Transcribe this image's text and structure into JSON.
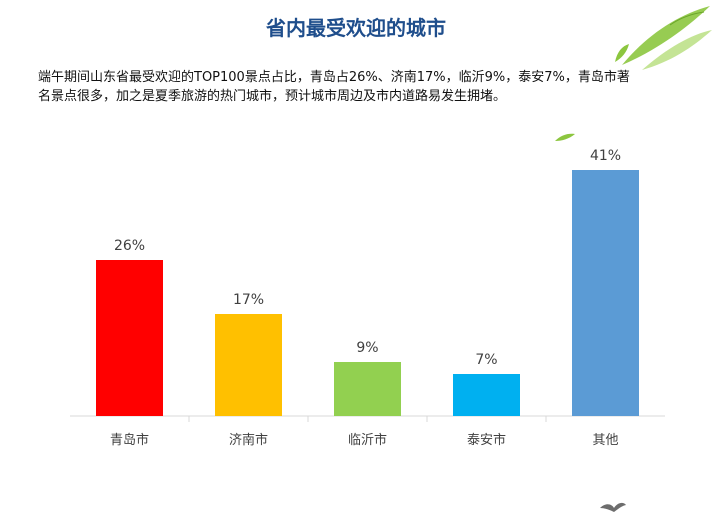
{
  "title": "省内最受欢迎的城市",
  "description": "端午期间山东省最受欢迎的TOP100景点占比，青岛占26%、济南17%，临沂9%，泰安7%，青岛市著名景点很多，加之是夏季旅游的热门城市，预计城市周边及市内道路易发生拥堵。",
  "chart_data": {
    "type": "bar",
    "categories": [
      "青岛市",
      "济南市",
      "临沂市",
      "泰安市",
      "其他"
    ],
    "values": [
      26,
      17,
      9,
      7,
      41
    ],
    "value_labels": [
      "26%",
      "17%",
      "9%",
      "7%",
      "41%"
    ],
    "colors": [
      "#ff0000",
      "#ffc000",
      "#92d050",
      "#00b0f0",
      "#5b9bd5"
    ],
    "ylim": [
      0,
      45
    ],
    "grid": false,
    "legend": "none"
  }
}
